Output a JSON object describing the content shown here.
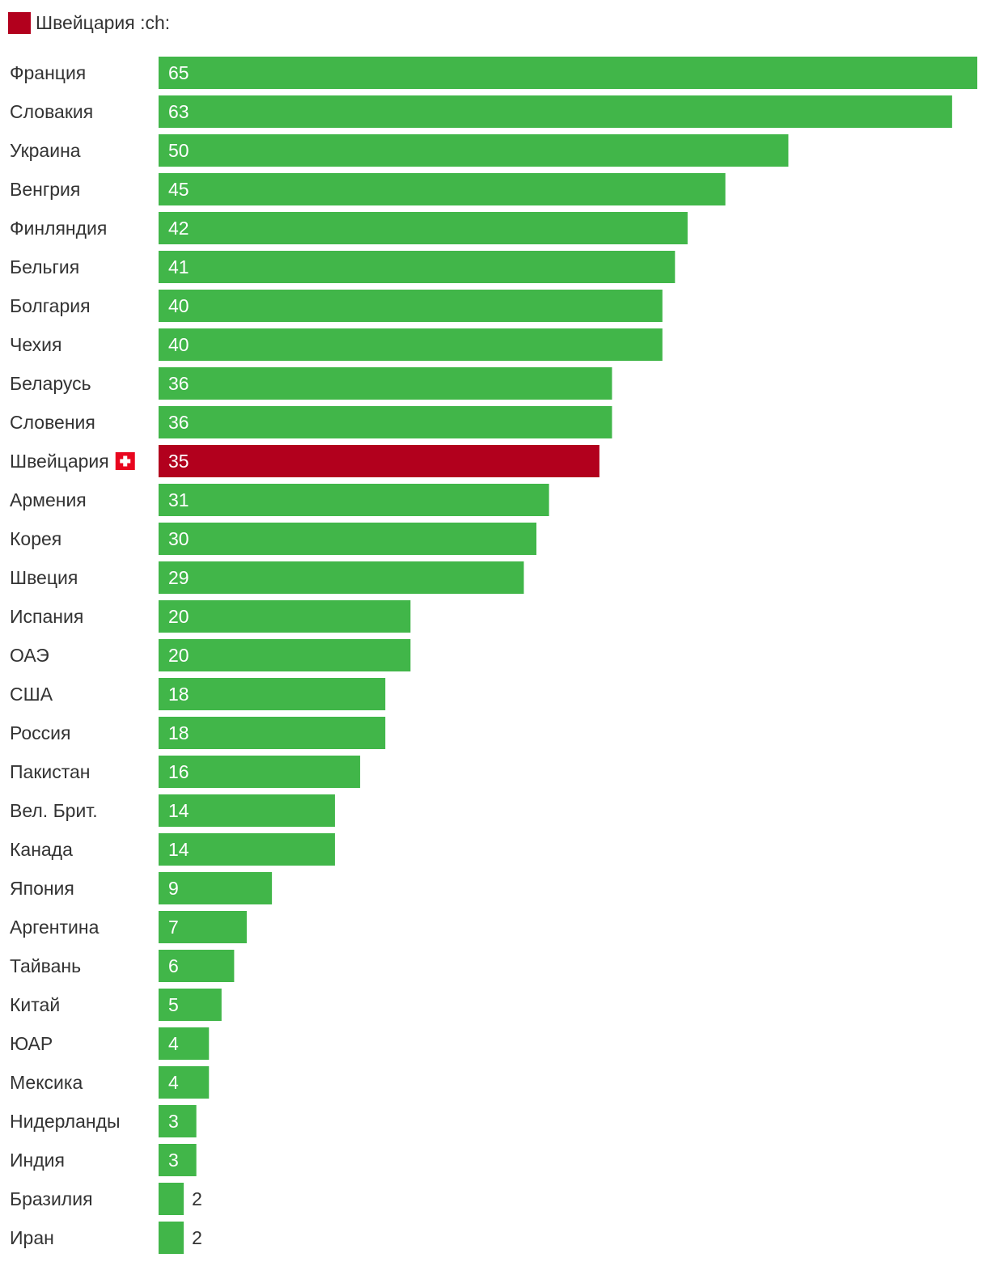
{
  "chart_data": {
    "type": "bar",
    "orientation": "horizontal",
    "legend": {
      "label": "Швейцария :ch:",
      "color": "#b2001d"
    },
    "highlight_flag_icon": "swiss-flag-icon",
    "colors": {
      "default": "#41b649",
      "highlight": "#b2001d",
      "flag": "#e8061f"
    },
    "categories": [
      "Франция",
      "Словакия",
      "Украина",
      "Венгрия",
      "Финляндия",
      "Бельгия",
      "Болгария",
      "Чехия",
      "Беларусь",
      "Словения",
      "Швейцария",
      "Армения",
      "Корея",
      "Швеция",
      "Испания",
      "ОАЭ",
      "США",
      "Россия",
      "Пакистан",
      "Вел. Брит.",
      "Канада",
      "Япония",
      "Аргентина",
      "Тайвань",
      "Китай",
      "ЮАР",
      "Мексика",
      "Нидерланды",
      "Индия",
      "Бразилия",
      "Иран"
    ],
    "values": [
      65,
      63,
      50,
      45,
      42,
      41,
      40,
      40,
      36,
      36,
      35,
      31,
      30,
      29,
      20,
      20,
      18,
      18,
      16,
      14,
      14,
      9,
      7,
      6,
      5,
      4,
      4,
      3,
      3,
      2,
      2
    ],
    "highlight_category": "Швейцария",
    "xlim": [
      0,
      65
    ],
    "title": "",
    "xlabel": "",
    "ylabel": "",
    "grid": false
  }
}
